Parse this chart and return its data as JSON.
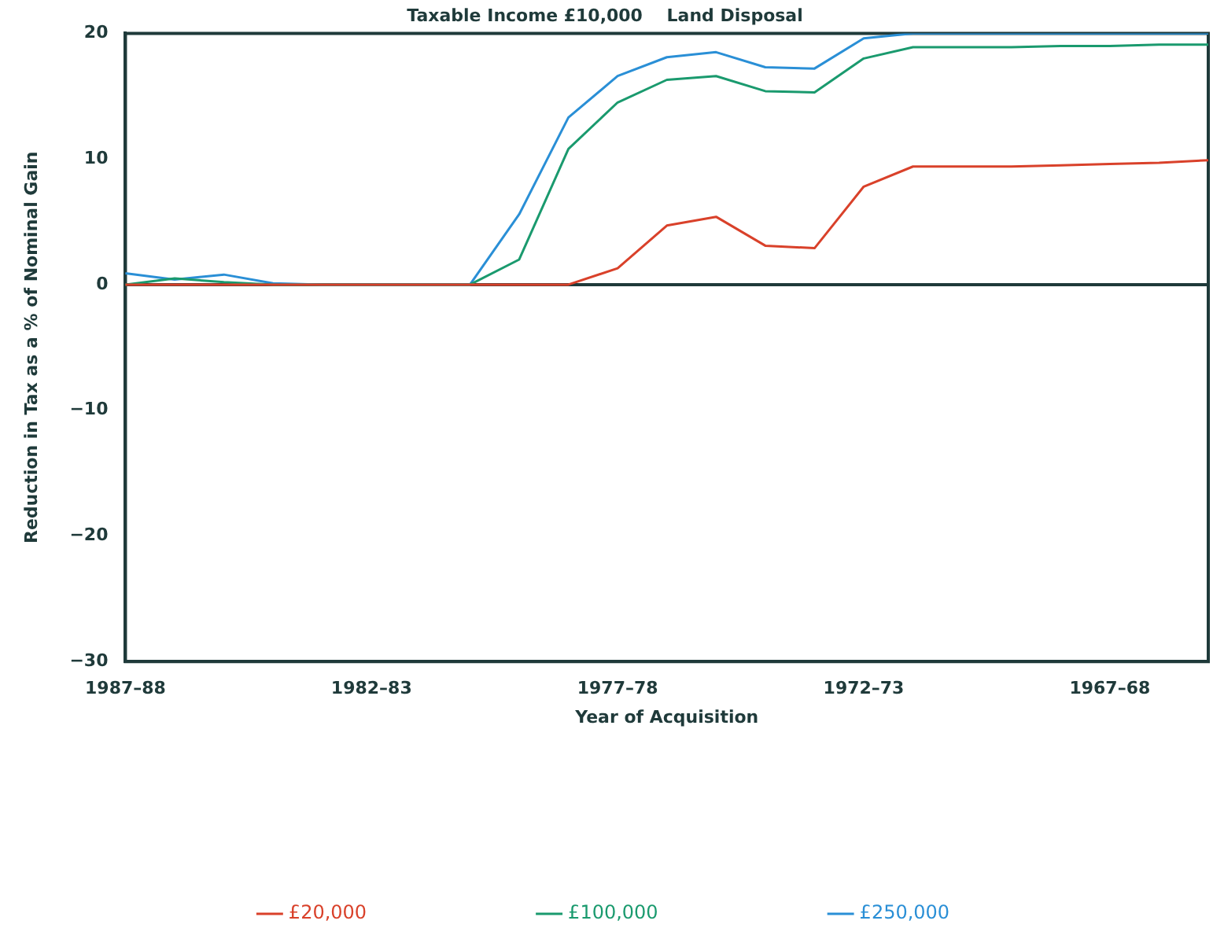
{
  "chart_data": {
    "type": "line",
    "title": "Taxable Income £10,000    Land Disposal",
    "xlabel": "Year of Acquisition",
    "ylabel": "Reduction in Tax as a % of Nominal Gain",
    "categories": [
      "1987–88",
      null,
      null,
      null,
      null,
      "1982–83",
      null,
      null,
      null,
      null,
      "1977–78",
      null,
      null,
      null,
      null,
      "1972–73",
      null,
      null,
      null,
      null,
      "1967–68",
      null,
      null
    ],
    "series": [
      {
        "name": "£20,000",
        "color": "#d9412a",
        "values": [
          0,
          0,
          0,
          0,
          0,
          0,
          0,
          0,
          0,
          0,
          1.3,
          4.7,
          5.4,
          3.1,
          2.9,
          7.8,
          9.4,
          9.4,
          9.4,
          9.5,
          9.6,
          9.7,
          9.9
        ]
      },
      {
        "name": "£100,000",
        "color": "#1a9a6e",
        "values": [
          0,
          0.5,
          0.2,
          0,
          0,
          0,
          0,
          0,
          2.0,
          10.8,
          14.5,
          16.3,
          16.6,
          15.4,
          15.3,
          18.0,
          18.9,
          18.9,
          18.9,
          19.0,
          19.0,
          19.1,
          19.1
        ]
      },
      {
        "name": "£250,000",
        "color": "#2a8fd6",
        "values": [
          0.9,
          0.4,
          0.8,
          0.1,
          0,
          0,
          0,
          0,
          5.6,
          13.3,
          16.6,
          18.1,
          18.5,
          17.3,
          17.2,
          19.6,
          20,
          20,
          20,
          20,
          20,
          20,
          20
        ]
      }
    ],
    "ylim": [
      -30,
      20
    ],
    "yticks": [
      -30,
      -20,
      -10,
      0,
      10,
      20
    ],
    "grid": false,
    "legend": "bottom",
    "marker": "none",
    "line_style": "solid",
    "ref_lines": [
      {
        "axis": "y",
        "value": 0,
        "color": "#1f3a3a"
      }
    ]
  }
}
